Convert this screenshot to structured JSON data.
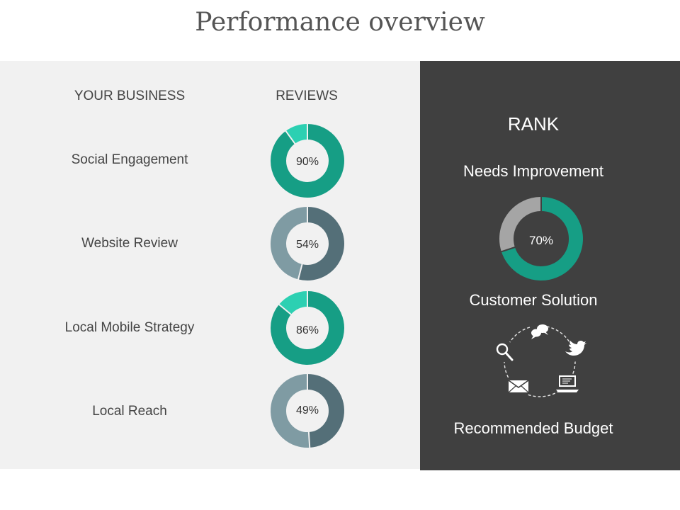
{
  "title": "Performance overview",
  "left": {
    "col_business": "YOUR BUSINESS",
    "col_reviews": "REVIEWS",
    "rows": [
      {
        "label": "Social Engagement",
        "percent": 90,
        "percent_text": "90%",
        "main_color": "#169e85",
        "rest_color": "#2cd0b2"
      },
      {
        "label": "Website Review",
        "percent": 54,
        "percent_text": "54%",
        "main_color": "#546f78",
        "rest_color": "#7f9ba3"
      },
      {
        "label": "Local Mobile Strategy",
        "percent": 86,
        "percent_text": "86%",
        "main_color": "#169e85",
        "rest_color": "#2cd0b2"
      },
      {
        "label": "Local Reach",
        "percent": 49,
        "percent_text": "49%",
        "main_color": "#546f78",
        "rest_color": "#7f9ba3"
      }
    ]
  },
  "right": {
    "rank_title": "RANK",
    "needs_improvement": "Needs Improvement",
    "rank_percent": 70,
    "rank_percent_text": "70%",
    "rank_main_color": "#169e85",
    "rank_rest_color": "#a5a5a5",
    "customer_solution": "Customer Solution",
    "recommended_budget": "Recommended Budget",
    "solution_icons": [
      "chat-bubbles-icon",
      "twitter-bird-icon",
      "laptop-icon",
      "envelope-icon",
      "magnifier-icon"
    ]
  }
}
